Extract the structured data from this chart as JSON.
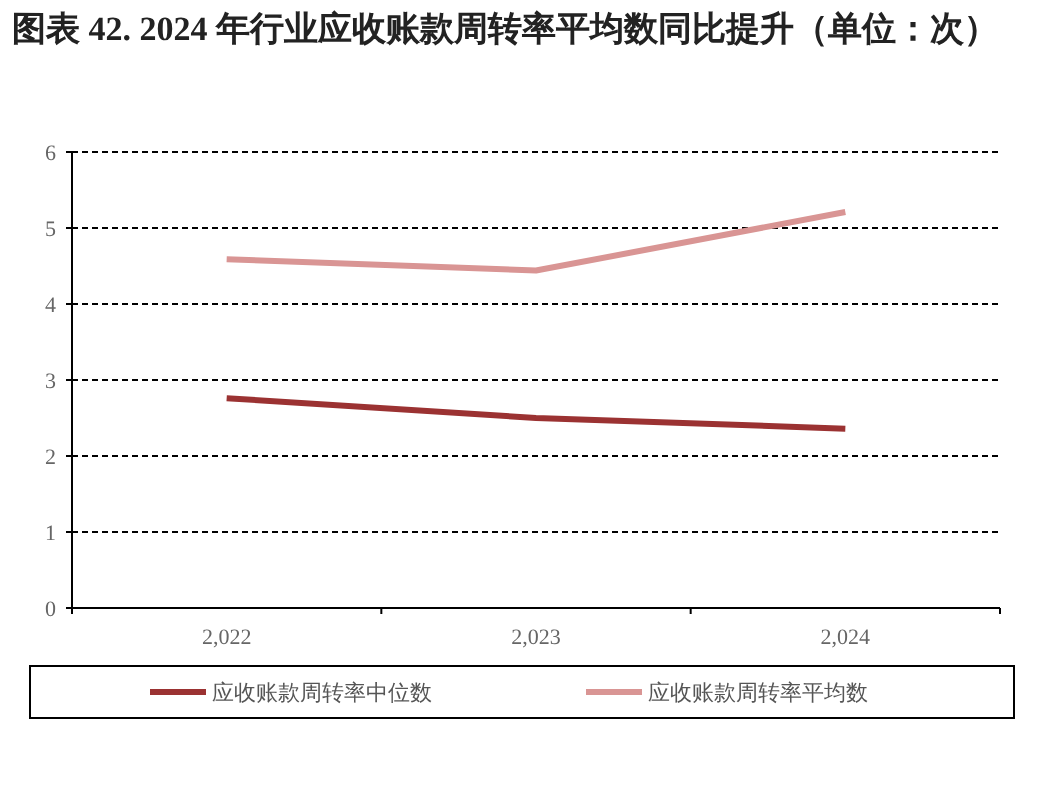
{
  "chart_data": {
    "type": "line",
    "title": "图表 42. 2024 年行业应收账款周转率平均数同比提升（单位：次）",
    "categories": [
      "2,022",
      "2,023",
      "2,024"
    ],
    "series": [
      {
        "name": "应收账款周转率中位数",
        "color": "#9b3232",
        "values": [
          2.76,
          2.5,
          2.36
        ]
      },
      {
        "name": "应收账款周转率平均数",
        "color": "#d99594",
        "values": [
          4.59,
          4.44,
          5.21
        ]
      }
    ],
    "ylim": [
      0,
      6
    ],
    "yticks": [
      0,
      1,
      2,
      3,
      4,
      5,
      6
    ],
    "grid": "y",
    "line_style": "solid",
    "marker": "none",
    "legend": "bottom"
  }
}
